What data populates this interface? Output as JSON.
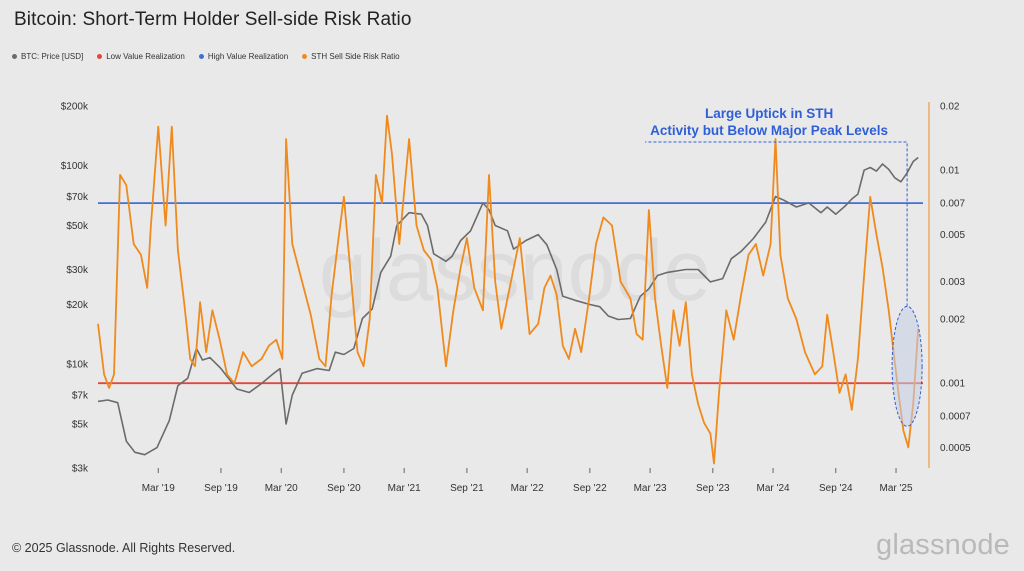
{
  "title": "Bitcoin: Short-Term Holder Sell-side Risk Ratio",
  "footer": "© 2025 Glassnode. All Rights Reserved.",
  "brand": "glassnode",
  "watermark": "glassnode",
  "colors": {
    "price": "#6b6b6b",
    "low": "#e0473d",
    "high": "#3f6fd8",
    "ratio": "#f08a1c",
    "annotation": "#2f5fd6",
    "ellipse_fill": "#c5cde6"
  },
  "legend": [
    {
      "label": "BTC: Price [USD]",
      "color": "#6b6b6b"
    },
    {
      "label": "Low Value Realization",
      "color": "#e0473d"
    },
    {
      "label": "High Value Realization",
      "color": "#3f6fd8"
    },
    {
      "label": "STH Sell Side Risk Ratio",
      "color": "#f08a1c"
    }
  ],
  "chart_data": {
    "type": "line",
    "title": "Bitcoin: Short-Term Holder Sell-side Risk Ratio",
    "x_ticks": [
      "Mar '19",
      "Sep '19",
      "Mar '20",
      "Sep '20",
      "Mar '21",
      "Sep '21",
      "Mar '22",
      "Sep '22",
      "Mar '23",
      "Sep '23",
      "Mar '24",
      "Sep '24",
      "Mar '25"
    ],
    "x_tick_values": [
      2019.16,
      2019.67,
      2020.16,
      2020.67,
      2021.16,
      2021.67,
      2022.16,
      2022.67,
      2023.16,
      2023.67,
      2024.16,
      2024.67,
      2025.16
    ],
    "xlim": [
      2018.67,
      2025.42
    ],
    "y_left": {
      "scale": "log",
      "range": [
        3000,
        200000
      ],
      "ticks": [
        3000,
        5000,
        7000,
        10000,
        20000,
        30000,
        50000,
        70000,
        100000,
        200000
      ],
      "tick_labels": [
        "$3k",
        "$5k",
        "$7k",
        "$10k",
        "$20k",
        "$30k",
        "$50k",
        "$70k",
        "$100k",
        "$200k"
      ]
    },
    "y_right": {
      "scale": "log",
      "range": [
        0.0004,
        0.02
      ],
      "ticks": [
        0.0005,
        0.0007,
        0.001,
        0.002,
        0.003,
        0.005,
        0.007,
        0.01,
        0.02
      ],
      "tick_labels": [
        "0.0005",
        "0.0007",
        "0.001",
        "0.002",
        "0.003",
        "0.005",
        "0.007",
        "0.01",
        "0.02"
      ]
    },
    "thresholds": [
      {
        "name": "High Value Realization",
        "value": 0.007,
        "axis": "right"
      },
      {
        "name": "Low Value Realization",
        "value": 0.001,
        "axis": "right"
      }
    ],
    "annotation": {
      "lines": [
        "Large Uptick in STH",
        "Activity but Below Major Peak Levels"
      ],
      "x": 2025.25,
      "y": 0.0012
    },
    "series": [
      {
        "name": "BTC: Price [USD]",
        "axis": "left",
        "x": [
          2018.67,
          2018.75,
          2018.83,
          2018.9,
          2018.97,
          2019.05,
          2019.15,
          2019.25,
          2019.32,
          2019.4,
          2019.47,
          2019.52,
          2019.58,
          2019.67,
          2019.75,
          2019.8,
          2019.9,
          2020.0,
          2020.1,
          2020.15,
          2020.2,
          2020.25,
          2020.33,
          2020.45,
          2020.55,
          2020.6,
          2020.67,
          2020.75,
          2020.82,
          2020.9,
          2020.97,
          2021.05,
          2021.1,
          2021.2,
          2021.3,
          2021.35,
          2021.4,
          2021.5,
          2021.55,
          2021.62,
          2021.7,
          2021.8,
          2021.85,
          2021.9,
          2022.0,
          2022.05,
          2022.15,
          2022.25,
          2022.32,
          2022.4,
          2022.45,
          2022.55,
          2022.67,
          2022.75,
          2022.82,
          2022.9,
          2023.0,
          2023.08,
          2023.15,
          2023.22,
          2023.3,
          2023.45,
          2023.55,
          2023.65,
          2023.75,
          2023.82,
          2023.9,
          2024.0,
          2024.1,
          2024.18,
          2024.25,
          2024.35,
          2024.45,
          2024.55,
          2024.6,
          2024.67,
          2024.75,
          2024.8,
          2024.85,
          2024.9,
          2024.95,
          2025.0,
          2025.05,
          2025.1,
          2025.15,
          2025.2,
          2025.25,
          2025.3,
          2025.34
        ],
        "values": [
          6500,
          6600,
          6400,
          4100,
          3600,
          3500,
          3800,
          5200,
          7800,
          8500,
          12000,
          10500,
          10800,
          9500,
          8200,
          7500,
          7200,
          8000,
          9000,
          9500,
          5000,
          7000,
          9000,
          9500,
          9300,
          11500,
          11200,
          12000,
          17000,
          19000,
          29000,
          35000,
          50000,
          58000,
          57000,
          50000,
          36000,
          33000,
          35000,
          42000,
          47000,
          65000,
          60000,
          50000,
          47000,
          38000,
          42000,
          45000,
          40000,
          30000,
          22000,
          21000,
          20000,
          19500,
          17500,
          16800,
          17000,
          22000,
          24000,
          28000,
          29000,
          30000,
          30000,
          26000,
          27000,
          34000,
          37000,
          43000,
          52000,
          70000,
          67000,
          62000,
          65000,
          58000,
          62000,
          57000,
          63000,
          68000,
          72000,
          95000,
          98000,
          94000,
          102000,
          96000,
          87000,
          83000,
          92000,
          105000,
          110000
        ]
      },
      {
        "name": "STH Sell Side Risk Ratio",
        "axis": "right",
        "x": [
          2018.67,
          2018.72,
          2018.76,
          2018.8,
          2018.85,
          2018.9,
          2018.96,
          2019.02,
          2019.07,
          2019.1,
          2019.16,
          2019.22,
          2019.27,
          2019.32,
          2019.37,
          2019.42,
          2019.46,
          2019.5,
          2019.55,
          2019.6,
          2019.66,
          2019.72,
          2019.78,
          2019.85,
          2019.92,
          2020.0,
          2020.06,
          2020.12,
          2020.17,
          2020.2,
          2020.25,
          2020.33,
          2020.4,
          2020.47,
          2020.52,
          2020.57,
          2020.62,
          2020.67,
          2020.72,
          2020.78,
          2020.83,
          2020.88,
          2020.93,
          2020.98,
          2021.02,
          2021.06,
          2021.12,
          2021.2,
          2021.26,
          2021.32,
          2021.38,
          2021.43,
          2021.5,
          2021.56,
          2021.62,
          2021.67,
          2021.73,
          2021.8,
          2021.85,
          2021.9,
          2021.95,
          2022.0,
          2022.1,
          2022.18,
          2022.25,
          2022.3,
          2022.35,
          2022.4,
          2022.45,
          2022.5,
          2022.55,
          2022.6,
          2022.66,
          2022.72,
          2022.78,
          2022.85,
          2022.92,
          2023.0,
          2023.05,
          2023.1,
          2023.15,
          2023.2,
          2023.25,
          2023.3,
          2023.35,
          2023.4,
          2023.45,
          2023.5,
          2023.55,
          2023.6,
          2023.65,
          2023.68,
          2023.72,
          2023.78,
          2023.84,
          2023.9,
          2023.96,
          2024.02,
          2024.08,
          2024.14,
          2024.18,
          2024.22,
          2024.28,
          2024.35,
          2024.42,
          2024.5,
          2024.56,
          2024.6,
          2024.65,
          2024.7,
          2024.75,
          2024.8,
          2024.85,
          2024.9,
          2024.95,
          2025.0,
          2025.05,
          2025.1,
          2025.14,
          2025.18,
          2025.22,
          2025.26,
          2025.3,
          2025.34
        ],
        "values": [
          0.0019,
          0.0011,
          0.00095,
          0.0011,
          0.0095,
          0.0085,
          0.0045,
          0.004,
          0.0028,
          0.0055,
          0.016,
          0.0055,
          0.016,
          0.0042,
          0.0024,
          0.0013,
          0.0012,
          0.0024,
          0.0014,
          0.0022,
          0.0016,
          0.0011,
          0.001,
          0.0014,
          0.0012,
          0.0013,
          0.0015,
          0.0016,
          0.0013,
          0.014,
          0.0045,
          0.003,
          0.0021,
          0.0013,
          0.0012,
          0.0026,
          0.0045,
          0.0075,
          0.0035,
          0.0014,
          0.0012,
          0.002,
          0.0095,
          0.007,
          0.018,
          0.012,
          0.0045,
          0.014,
          0.0055,
          0.0042,
          0.0038,
          0.0028,
          0.0012,
          0.0022,
          0.0035,
          0.0048,
          0.0028,
          0.0022,
          0.0095,
          0.003,
          0.0018,
          0.0025,
          0.0048,
          0.0017,
          0.0019,
          0.0028,
          0.0032,
          0.0026,
          0.0015,
          0.0013,
          0.0018,
          0.0014,
          0.0024,
          0.0045,
          0.006,
          0.0055,
          0.003,
          0.0025,
          0.0017,
          0.0016,
          0.0065,
          0.0025,
          0.0015,
          0.00095,
          0.0022,
          0.0015,
          0.0024,
          0.0011,
          0.0008,
          0.00065,
          0.00058,
          0.00042,
          0.0009,
          0.0022,
          0.0016,
          0.0026,
          0.004,
          0.0045,
          0.0032,
          0.0045,
          0.014,
          0.004,
          0.0025,
          0.002,
          0.0014,
          0.0011,
          0.0012,
          0.0021,
          0.0014,
          0.0009,
          0.0011,
          0.00075,
          0.0013,
          0.0032,
          0.0075,
          0.005,
          0.0035,
          0.0022,
          0.0014,
          0.0009,
          0.0006,
          0.0005,
          0.0008,
          0.0018
        ]
      }
    ]
  }
}
